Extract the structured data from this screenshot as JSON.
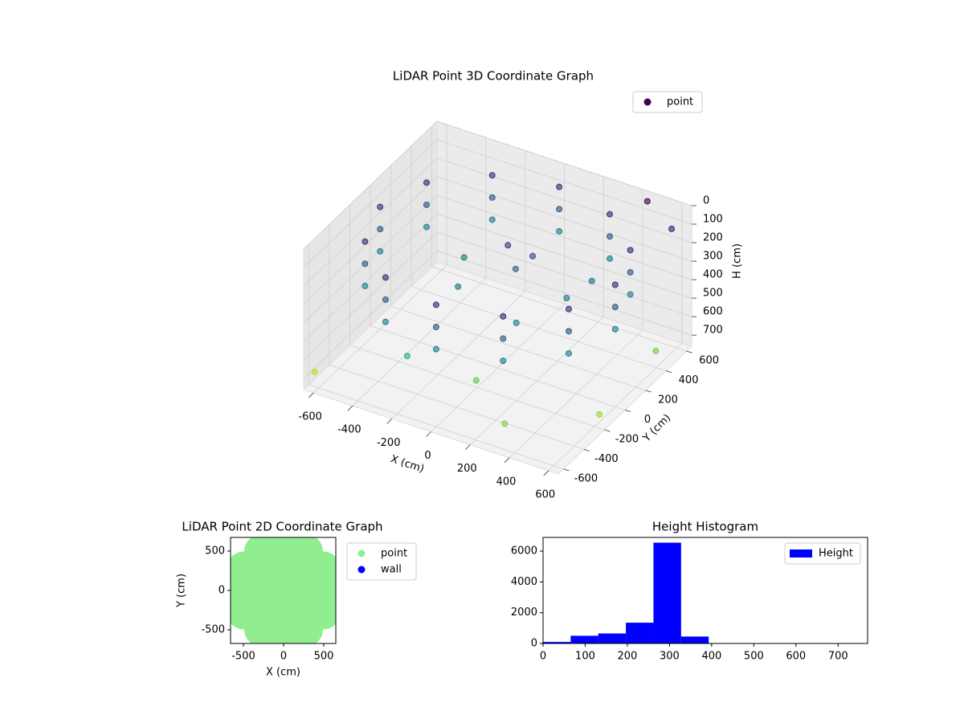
{
  "chart_data": [
    {
      "type": "scatter3d",
      "title": "LiDAR Point 3D Coordinate Graph",
      "xlabel": "X (cm)",
      "ylabel": "Y (cm)",
      "zlabel": "H (cm)",
      "xlim": [
        -650,
        650
      ],
      "ylim": [
        -650,
        650
      ],
      "zlim": [
        0,
        760
      ],
      "z_inverted": true,
      "xticks": [
        -600,
        -400,
        -200,
        0,
        200,
        400,
        600
      ],
      "yticks": [
        -600,
        -400,
        -200,
        0,
        200,
        400,
        600
      ],
      "zticks": [
        0,
        100,
        200,
        300,
        400,
        500,
        600,
        700
      ],
      "grid": true,
      "legend": "upper right",
      "colormap": "viridis",
      "series": [
        {
          "name": "point",
          "color": "#440154",
          "x": [
            600,
            520,
            300,
            0,
            -300,
            -520,
            -600,
            -520,
            -300,
            0,
            300,
            520,
            600,
            520,
            300,
            0,
            -300,
            -520,
            -600,
            -520,
            -300,
            0,
            300,
            520,
            600,
            520,
            300,
            0,
            -300,
            -520,
            -600,
            -520,
            -300,
            0,
            300,
            520,
            0,
            100,
            50,
            -150,
            200,
            300,
            350,
            -250,
            450,
            600,
            100,
            350,
            -620,
            650,
            650,
            -200
          ],
          "y": [
            0,
            300,
            520,
            600,
            520,
            300,
            0,
            -300,
            -520,
            -600,
            -520,
            -300,
            0,
            300,
            520,
            600,
            520,
            300,
            0,
            -300,
            -520,
            -600,
            -520,
            -300,
            0,
            300,
            520,
            600,
            520,
            300,
            0,
            -300,
            -520,
            -600,
            -520,
            -300,
            100,
            150,
            80,
            -100,
            -200,
            100,
            250,
            150,
            600,
            550,
            -400,
            -600,
            -600,
            300,
            -250,
            -500
          ],
          "z": [
            100,
            100,
            100,
            100,
            100,
            100,
            100,
            100,
            100,
            100,
            100,
            100,
            220,
            220,
            220,
            220,
            220,
            220,
            220,
            220,
            220,
            220,
            220,
            220,
            340,
            340,
            340,
            340,
            340,
            340,
            340,
            340,
            340,
            340,
            340,
            340,
            150,
            200,
            250,
            320,
            340,
            330,
            300,
            330,
            20,
            90,
            580,
            620,
            680,
            600,
            650,
            500
          ]
        }
      ]
    },
    {
      "type": "scatter",
      "title": "LiDAR Point 2D Coordinate Graph",
      "xlabel": "X (cm)",
      "ylabel": "Y (cm)",
      "xlim": [
        -660,
        650
      ],
      "ylim": [
        -673,
        673
      ],
      "xticks": [
        -500,
        0,
        500
      ],
      "yticks": [
        -500,
        0,
        500
      ],
      "legend": "outside right",
      "series": [
        {
          "name": "point",
          "color": "#90ee90",
          "x": [
            0,
            200,
            0,
            -200,
            0,
            140,
            -140,
            -140,
            140,
            400,
            280,
            0,
            -280,
            -400,
            -280,
            0,
            280,
            580,
            500,
            290,
            0,
            -290,
            -500,
            -580,
            -500,
            -290,
            0,
            290,
            500
          ],
          "y": [
            0,
            0,
            200,
            0,
            -200,
            140,
            140,
            -140,
            -140,
            0,
            280,
            400,
            280,
            0,
            -280,
            -400,
            -280,
            0,
            290,
            500,
            580,
            500,
            290,
            0,
            -290,
            -500,
            -580,
            -500,
            -290
          ]
        },
        {
          "name": "wall",
          "color": "#0000ff",
          "x": [],
          "y": []
        }
      ]
    },
    {
      "type": "histogram",
      "title": "Height Histogram",
      "bins": [
        0,
        65.5,
        131,
        196.5,
        262,
        327.5,
        393,
        458.5,
        524,
        589.5,
        655,
        720.5
      ],
      "values": [
        100,
        500,
        650,
        1350,
        6550,
        450,
        0,
        0,
        0,
        0,
        5
      ],
      "name": "Height",
      "color": "#0000ff",
      "xlim": [
        0,
        770
      ],
      "ylim": [
        0,
        6890
      ],
      "xticks": [
        0,
        100,
        200,
        300,
        400,
        500,
        600,
        700
      ],
      "yticks": [
        0,
        2000,
        4000,
        6000
      ],
      "legend": "upper right"
    }
  ]
}
